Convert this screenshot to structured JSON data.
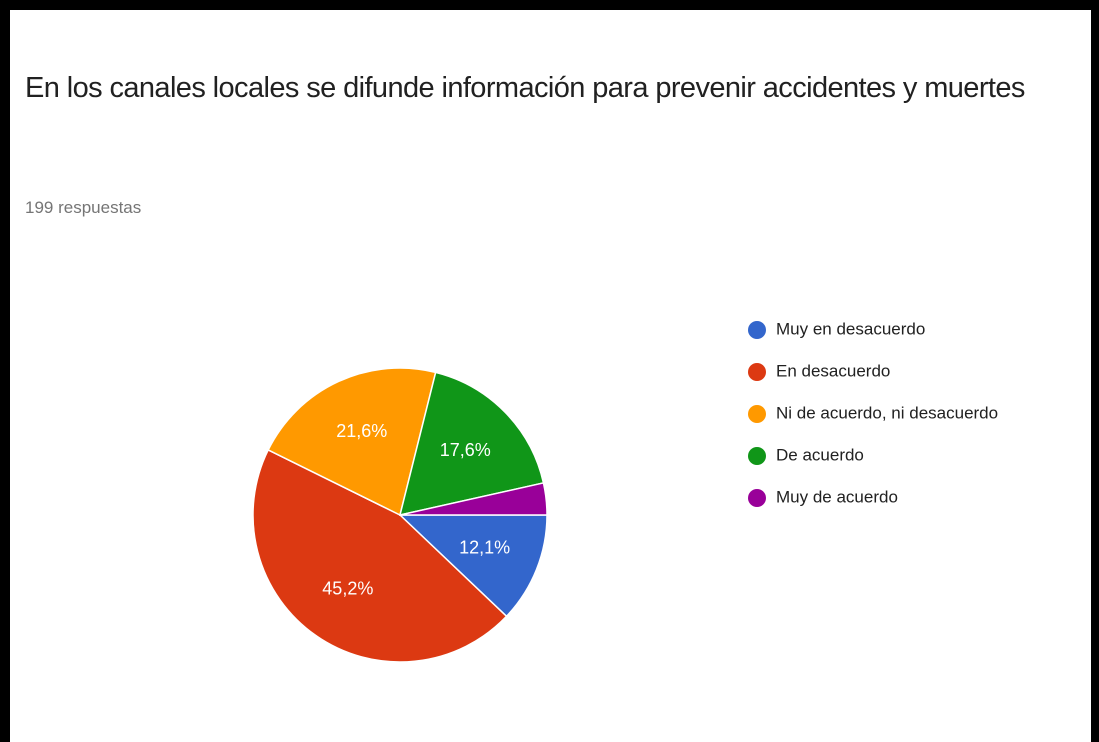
{
  "chart_data": {
    "type": "pie",
    "title": "En los canales locales se difunde información para prevenir accidentes y muertes",
    "subtitle": "199 respuestas",
    "categories": [
      "Muy en desacuerdo",
      "En desacuerdo",
      "Ni de acuerdo, ni desacuerdo",
      "De acuerdo",
      "Muy de acuerdo"
    ],
    "values": [
      12.1,
      45.2,
      21.6,
      17.6,
      3.5
    ],
    "value_labels": [
      "12,1%",
      "45,2%",
      "21,6%",
      "17,6%",
      null
    ],
    "colors": [
      "#3366cc",
      "#dc3912",
      "#ff9900",
      "#109618",
      "#990099"
    ],
    "legend": "right"
  }
}
